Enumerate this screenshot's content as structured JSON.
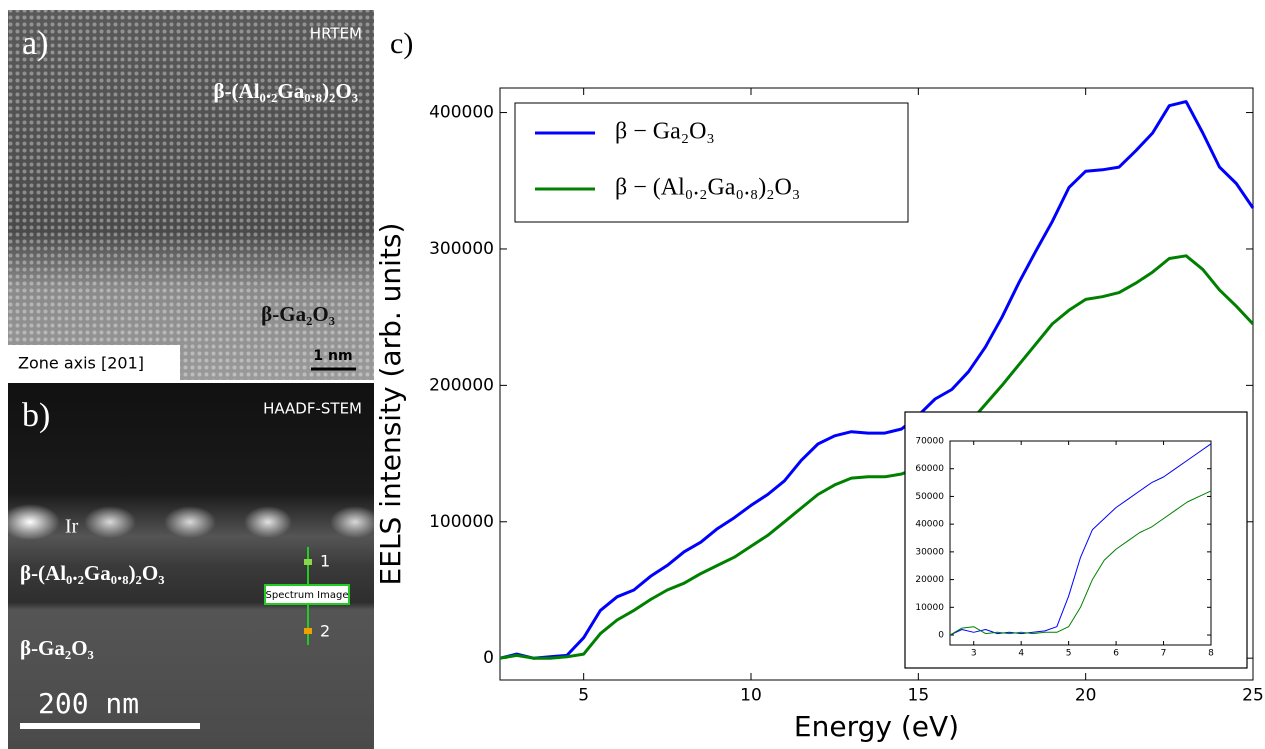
{
  "panel_a": {
    "label": "a)",
    "mode": "HRTEM",
    "top_layer": "β-(Al₀.₂Ga₀.₈)₂O₃",
    "bottom_layer": "β-Ga₂O₃",
    "zone_axis": "Zone axis [201]",
    "scale_bar": "1 nm"
  },
  "panel_b": {
    "label": "b)",
    "mode": "HAADF-STEM",
    "cap": "Ir",
    "top_layer": "β-(Al₀.₂Ga₀.₈)₂O₃",
    "bottom_layer": "β-Ga₂O₃",
    "point_1": "1",
    "spectrum_image": "Spectrum Image",
    "point_2": "2",
    "scale_bar": "200 nm"
  },
  "panel_c_label": "c)",
  "chart_data": [
    {
      "type": "line",
      "x_label": "Energy (eV)",
      "y_label": "EELS intensity (arb. units)",
      "x": [
        2.5,
        3,
        3.5,
        4,
        4.5,
        5,
        5.5,
        6,
        6.5,
        7,
        7.5,
        8,
        8.5,
        9,
        9.5,
        10,
        10.5,
        11,
        11.5,
        12,
        12.5,
        13,
        13.5,
        14,
        14.5,
        15,
        15.5,
        16,
        16.5,
        17,
        17.5,
        18,
        18.5,
        19,
        19.5,
        20,
        20.5,
        21,
        21.5,
        22,
        22.5,
        23,
        23.5,
        24,
        24.5,
        25
      ],
      "series": [
        {
          "name": "β − Ga₂O₃",
          "color": "#0000ff",
          "values": [
            0,
            3000,
            0,
            1000,
            2000,
            15000,
            35000,
            45000,
            50000,
            60000,
            68000,
            78000,
            85000,
            95000,
            103000,
            112000,
            120000,
            130000,
            145000,
            157000,
            163000,
            166000,
            165000,
            165000,
            168000,
            178000,
            190000,
            197000,
            210000,
            228000,
            250000,
            275000,
            298000,
            320000,
            345000,
            357000,
            358000,
            360000,
            372000,
            385000,
            405000,
            408000,
            385000,
            360000,
            348000,
            330000
          ]
        },
        {
          "name": "β − (Al₀.₂Ga₀.₈)₂O₃",
          "color": "#008000",
          "values": [
            0,
            2000,
            0,
            0,
            1000,
            3000,
            18000,
            28000,
            35000,
            43000,
            50000,
            55000,
            62000,
            68000,
            74000,
            82000,
            90000,
            100000,
            110000,
            120000,
            127000,
            132000,
            133000,
            133000,
            135000,
            140000,
            150000,
            160000,
            172000,
            186000,
            200000,
            215000,
            230000,
            245000,
            255000,
            263000,
            265000,
            268000,
            275000,
            283000,
            293000,
            295000,
            285000,
            270000,
            258000,
            245000
          ]
        }
      ],
      "xlim": [
        2.5,
        25
      ],
      "xticks": [
        5,
        10,
        15,
        20,
        25
      ],
      "ylim": [
        -16000,
        418000
      ],
      "yticks": [
        0,
        100000,
        200000,
        300000,
        400000
      ],
      "grid": false,
      "legend": "upper left"
    },
    {
      "type": "line",
      "x": [
        2.5,
        2.75,
        3,
        3.25,
        3.5,
        3.75,
        4,
        4.25,
        4.5,
        4.75,
        5,
        5.25,
        5.5,
        5.75,
        6,
        6.25,
        6.5,
        6.75,
        7,
        7.25,
        7.5,
        7.75,
        8
      ],
      "series": [
        {
          "color": "#0000ff",
          "values": [
            0,
            2000,
            1000,
            2000,
            500,
            1000,
            500,
            1000,
            1500,
            3000,
            14000,
            28000,
            38000,
            42000,
            46000,
            49000,
            52000,
            55000,
            57000,
            60000,
            63000,
            66000,
            69000
          ]
        },
        {
          "color": "#008000",
          "values": [
            0,
            2500,
            3000,
            500,
            1000,
            500,
            1000,
            500,
            1000,
            1000,
            3000,
            10000,
            20000,
            27000,
            31000,
            34000,
            37000,
            39000,
            42000,
            45000,
            48000,
            50000,
            52000
          ]
        }
      ],
      "xlim": [
        2.5,
        8
      ],
      "xticks": [
        3,
        4,
        5,
        6,
        7,
        8
      ],
      "ylim": [
        -3600,
        70000
      ],
      "yticks": [
        0,
        10000,
        20000,
        30000,
        40000,
        50000,
        60000,
        70000
      ],
      "grid": false
    }
  ]
}
